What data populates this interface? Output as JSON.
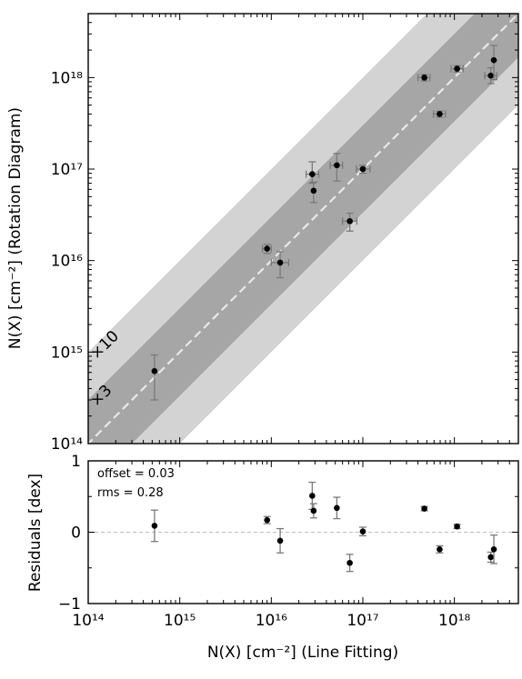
{
  "chart_data": [
    {
      "type": "scatter",
      "x_scale": "log",
      "y_scale": "log",
      "xlim": [
        100000000000000.0,
        5e+18
      ],
      "ylim": [
        100000000000000.0,
        5e+18
      ],
      "xlabel": "N(X) [cm⁻²] (Line Fitting)",
      "ylabel": "N(X) [cm⁻²] (Rotation Diagram)",
      "y_tick_labels": [
        "10¹⁴",
        "10¹⁵",
        "10¹⁶",
        "10¹⁷",
        "10¹⁸"
      ],
      "band_labels": [
        "×3",
        "×10"
      ],
      "grid": false,
      "one_to_one_line": true,
      "points": [
        {
          "x": 530000000000000.0,
          "y": 620000000000000.0,
          "y_err_low": 300000000000000.0,
          "y_err_high": 930000000000000.0,
          "x_err_low": null,
          "x_err_high": null
        },
        {
          "x": 9000000000000000.0,
          "y": 1.35e+16,
          "y_err_low": 1.2e+16,
          "y_err_high": 1.5e+16,
          "x_err_low": 8000000000000000.0,
          "x_err_high": 1e+16
        },
        {
          "x": 1.25e+16,
          "y": 9500000000000000.0,
          "y_err_low": 6500000000000000.0,
          "y_err_high": 1.25e+16,
          "x_err_low": 1e+16,
          "x_err_high": 1.55e+16
        },
        {
          "x": 2.8e+16,
          "y": 8.8e+16,
          "y_err_low": 7e+16,
          "y_err_high": 1.2e+17,
          "x_err_low": 2.4e+16,
          "x_err_high": 3.3e+16
        },
        {
          "x": 2.9e+16,
          "y": 5.8e+16,
          "y_err_low": 4.3e+16,
          "y_err_high": 7.2e+16,
          "x_err_low": null,
          "x_err_high": null
        },
        {
          "x": 5.2e+16,
          "y": 1.1e+17,
          "y_err_low": 7.4e+16,
          "y_err_high": 1.48e+17,
          "x_err_low": 4.4e+16,
          "x_err_high": 6e+16
        },
        {
          "x": 7.2e+16,
          "y": 2.7e+16,
          "y_err_low": 2.1e+16,
          "y_err_high": 3.3e+16,
          "x_err_low": 6e+16,
          "x_err_high": 8.6e+16
        },
        {
          "x": 1e+17,
          "y": 1e+17,
          "y_err_low": 9e+16,
          "y_err_high": 1.1e+17,
          "x_err_low": 8.5e+16,
          "x_err_high": 1.2e+17
        },
        {
          "x": 4.7e+17,
          "y": 1e+18,
          "y_err_low": 9.2e+17,
          "y_err_high": 1.08e+18,
          "x_err_low": 4e+17,
          "x_err_high": 5.4e+17
        },
        {
          "x": 6.9e+17,
          "y": 4e+17,
          "y_err_low": 3.7e+17,
          "y_err_high": 4.3e+17,
          "x_err_low": 5.9e+17,
          "x_err_high": 8e+17
        },
        {
          "x": 1.07e+18,
          "y": 1.25e+18,
          "y_err_low": 1.15e+18,
          "y_err_high": 1.35e+18,
          "x_err_low": 9.2e+17,
          "x_err_high": 1.25e+18
        },
        {
          "x": 2.5e+18,
          "y": 1.05e+18,
          "y_err_low": 8.6e+17,
          "y_err_high": 1.28e+18,
          "x_err_low": 2.15e+18,
          "x_err_high": 2.9e+18
        },
        {
          "x": 2.7e+18,
          "y": 1.55e+18,
          "y_err_low": 9.5e+17,
          "y_err_high": 2.25e+18,
          "x_err_low": null,
          "x_err_high": null
        }
      ]
    },
    {
      "type": "scatter",
      "x_scale": "log",
      "xlim": [
        100000000000000.0,
        5e+18
      ],
      "ylim": [
        -1,
        1
      ],
      "xlabel": "N(X) [cm⁻²] (Line Fitting)",
      "ylabel": "Residuals [dex]",
      "x_tick_labels": [
        "10¹⁴",
        "10¹⁵",
        "10¹⁶",
        "10¹⁷",
        "10¹⁸"
      ],
      "y_tick_labels": [
        "−1",
        "0",
        "1"
      ],
      "annotations": [
        "offset = 0.03",
        "rms = 0.28"
      ],
      "zero_line": true,
      "grid": false,
      "points": [
        {
          "x": 530000000000000.0,
          "y": 0.09,
          "y_err": 0.22
        },
        {
          "x": 9000000000000000.0,
          "y": 0.17,
          "y_err": 0.05
        },
        {
          "x": 1.25e+16,
          "y": -0.12,
          "y_err": 0.17
        },
        {
          "x": 2.8e+16,
          "y": 0.51,
          "y_err": 0.19
        },
        {
          "x": 2.9e+16,
          "y": 0.3,
          "y_err": 0.1
        },
        {
          "x": 5.2e+16,
          "y": 0.34,
          "y_err": 0.15
        },
        {
          "x": 7.2e+16,
          "y": -0.43,
          "y_err": 0.12
        },
        {
          "x": 1e+17,
          "y": 0.01,
          "y_err": 0.06
        },
        {
          "x": 4.7e+17,
          "y": 0.33,
          "y_err": 0.03
        },
        {
          "x": 6.9e+17,
          "y": -0.24,
          "y_err": 0.05
        },
        {
          "x": 1.07e+18,
          "y": 0.08,
          "y_err": 0.03
        },
        {
          "x": 2.5e+18,
          "y": -0.35,
          "y_err": 0.07
        },
        {
          "x": 2.7e+18,
          "y": -0.24,
          "y_err": 0.2
        }
      ]
    }
  ]
}
